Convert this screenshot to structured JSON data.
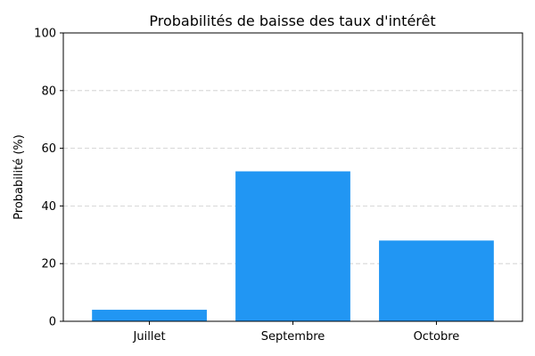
{
  "chart_data": {
    "type": "bar",
    "title": "Probabilités de baisse des taux d'intérêt",
    "xlabel": "",
    "ylabel": "Probabilité (%)",
    "categories": [
      "Juillet",
      "Septembre",
      "Octobre"
    ],
    "values": [
      4,
      52,
      28
    ],
    "ylim": [
      0,
      100
    ],
    "yticks": [
      0,
      20,
      40,
      60,
      80,
      100
    ],
    "grid": "y-dashed",
    "colors": {
      "bar": "#2196f3",
      "grid": "#cccccc",
      "axis": "#000000"
    }
  }
}
